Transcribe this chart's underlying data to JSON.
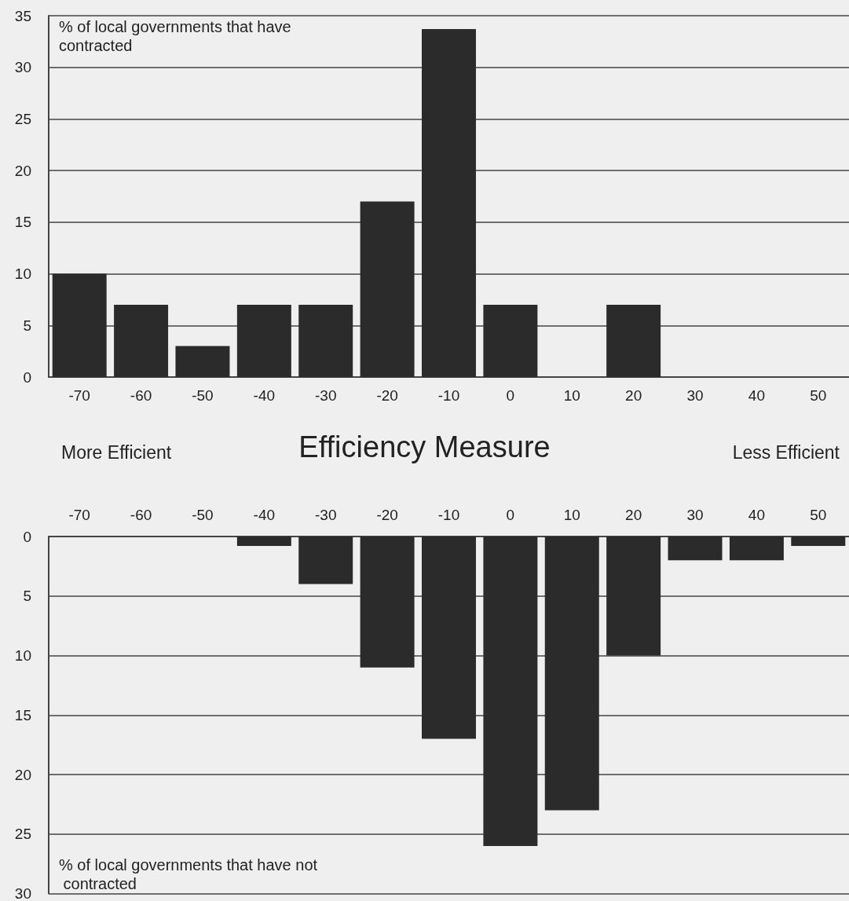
{
  "chart_data": [
    {
      "type": "bar",
      "categories": [
        "-70",
        "-60",
        "-50",
        "-40",
        "-30",
        "-20",
        "-10",
        "0",
        "10",
        "20",
        "30",
        "40",
        "50"
      ],
      "values": [
        10,
        7,
        3,
        7,
        7,
        17,
        33.7,
        7,
        0,
        7,
        0,
        0,
        0
      ],
      "color": "#2b2b2b",
      "ylim": [
        0,
        35
      ],
      "yticks": [
        0,
        5,
        10,
        15,
        20,
        25,
        30,
        35
      ],
      "grid": "y",
      "ylabel": "% of local governments that have contracted",
      "xlabel": "Efficiency Measure",
      "annotations": [
        "More Efficient",
        "Less Efficient"
      ]
    },
    {
      "type": "bar",
      "categories": [
        "-70",
        "-60",
        "-50",
        "-40",
        "-30",
        "-20",
        "-10",
        "0",
        "10",
        "20",
        "30",
        "40",
        "50"
      ],
      "values": [
        0,
        0,
        0,
        0.8,
        4,
        11,
        17,
        26,
        23,
        10,
        2,
        2,
        0.8
      ],
      "color": "#2b2b2b",
      "ylim": [
        30,
        0
      ],
      "yticks": [
        0,
        5,
        10,
        15,
        20,
        25,
        30
      ],
      "grid": "y",
      "ylabel": "% of local governments that have not contracted"
    }
  ]
}
